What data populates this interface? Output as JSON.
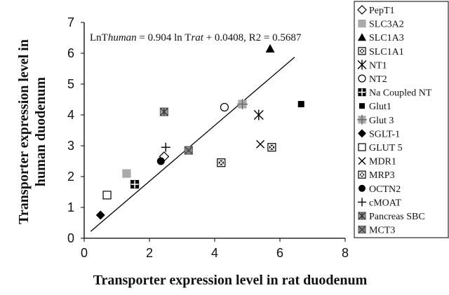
{
  "chart_data": {
    "type": "scatter",
    "title": "",
    "xlabel": "Transporter expression level in rat duodenum",
    "ylabel_lines": [
      "Transporter expression level in",
      "human duodenum"
    ],
    "xlim": [
      0,
      8
    ],
    "ylim": [
      0,
      7
    ],
    "x_ticks": [
      "0",
      "2",
      "4",
      "6",
      "8"
    ],
    "y_ticks": [
      "0",
      "1",
      "2",
      "3",
      "4",
      "5",
      "6",
      "7"
    ],
    "grid": false,
    "legend_position": "right",
    "regression": {
      "equation_parts": [
        "LnT",
        "human",
        " = 0.904 ln T",
        "rat",
        " + 0.0408,  R2 = 0.5687"
      ],
      "slope": 0.904,
      "intercept": 0.0408,
      "x_range": [
        0.2,
        6.45
      ]
    },
    "series": [
      {
        "name": "PepT1",
        "marker": "diamond-open",
        "color": "#000000",
        "points": [
          [
            2.45,
            2.65
          ]
        ]
      },
      {
        "name": "SLC3A2",
        "marker": "square-filled",
        "color": "#aaaaaa",
        "points": [
          [
            1.3,
            2.1
          ]
        ]
      },
      {
        "name": "SLC1A3",
        "marker": "triangle-filled",
        "color": "#000000",
        "points": [
          [
            5.7,
            6.15
          ]
        ]
      },
      {
        "name": "SLC1A1",
        "marker": "square-x",
        "color": "#000000",
        "points": [
          [
            5.75,
            2.95
          ]
        ]
      },
      {
        "name": "NT1",
        "marker": "asterisk",
        "color": "#000000",
        "points": [
          [
            5.35,
            4.0
          ]
        ]
      },
      {
        "name": "NT2",
        "marker": "circle-open",
        "color": "#000000",
        "points": [
          [
            4.3,
            4.25
          ]
        ]
      },
      {
        "name": "Na Coupled NT",
        "marker": "square-plus",
        "color": "#000000",
        "points": [
          [
            1.55,
            1.75
          ]
        ]
      },
      {
        "name": "Glut1",
        "marker": "square-filled-small",
        "color": "#000000",
        "points": [
          [
            6.65,
            4.35
          ]
        ]
      },
      {
        "name": "Glut 3",
        "marker": "square-plus-gray",
        "color": "#aaaaaa",
        "points": [
          [
            4.85,
            4.35
          ]
        ]
      },
      {
        "name": "SGLT-1",
        "marker": "diamond-filled",
        "color": "#000000",
        "points": [
          [
            0.5,
            0.75
          ]
        ]
      },
      {
        "name": "GLUT 5",
        "marker": "square-open",
        "color": "#000000",
        "points": [
          [
            0.7,
            1.4
          ]
        ]
      },
      {
        "name": "MDR1",
        "marker": "x",
        "color": "#000000",
        "points": [
          [
            5.4,
            3.05
          ]
        ]
      },
      {
        "name": "MRP3",
        "marker": "square-x",
        "color": "#000000",
        "points": [
          [
            4.2,
            2.45
          ]
        ]
      },
      {
        "name": "OCTN2",
        "marker": "circle-filled",
        "color": "#000000",
        "points": [
          [
            2.35,
            2.5
          ]
        ]
      },
      {
        "name": "cMOAT",
        "marker": "plus",
        "color": "#000000",
        "points": [
          [
            2.5,
            2.95
          ]
        ]
      },
      {
        "name": "Pancreas SBC",
        "marker": "square-asterisk-gray",
        "color": "#888888",
        "points": [
          [
            2.45,
            4.1
          ]
        ]
      },
      {
        "name": "MCT3",
        "marker": "square-x-gray",
        "color": "#888888",
        "points": [
          [
            3.2,
            2.85
          ]
        ]
      }
    ]
  }
}
